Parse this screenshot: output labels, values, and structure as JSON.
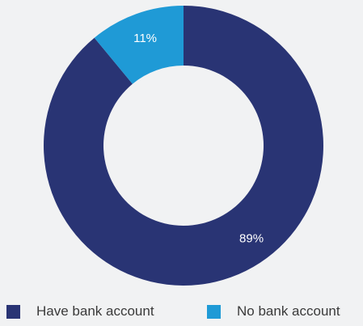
{
  "chart_data": {
    "type": "pie",
    "donut": true,
    "title": "",
    "categories": [
      "Have bank account",
      "No bank account"
    ],
    "values": [
      89,
      11
    ],
    "labels": [
      "89%",
      "11%"
    ],
    "colors": [
      "#293474",
      "#1f9ad6"
    ],
    "legend_position": "bottom"
  },
  "legend": {
    "items": [
      {
        "label": "Have bank account",
        "color": "#293474"
      },
      {
        "label": "No bank account",
        "color": "#1f9ad6"
      }
    ]
  }
}
